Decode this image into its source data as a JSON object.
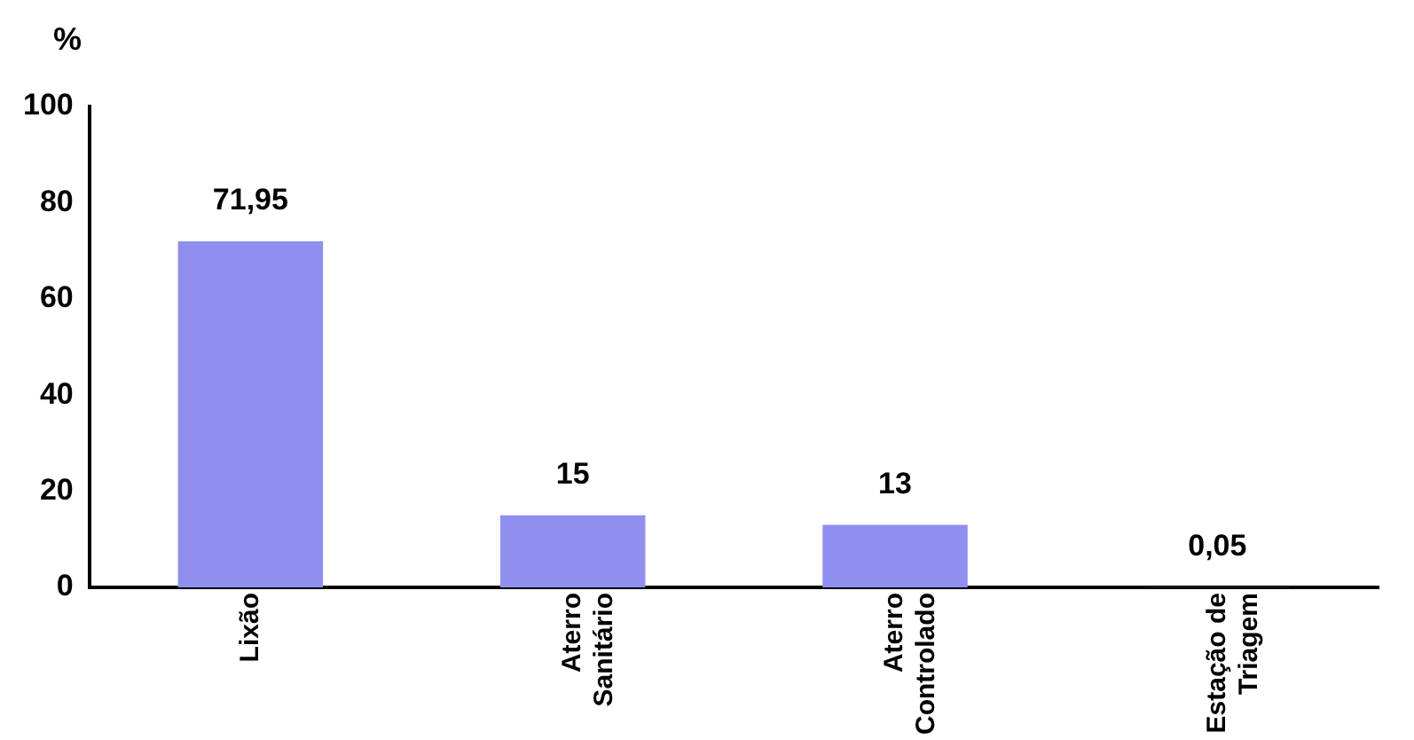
{
  "chart_data": {
    "type": "bar",
    "ylabel": "%",
    "categories": [
      "Lixão",
      "Aterro\nSanitário",
      "Aterro\nControlado",
      "Estação de\nTriagem"
    ],
    "values": [
      71.95,
      15,
      13,
      0.05
    ],
    "color": "#8f8fef",
    "value_labels": [
      "71,95",
      "15",
      "13",
      "0,05"
    ],
    "ylim": [
      0,
      100
    ],
    "yticks": [
      0,
      20,
      40,
      60,
      80,
      100
    ],
    "grid": false,
    "legend": false
  }
}
